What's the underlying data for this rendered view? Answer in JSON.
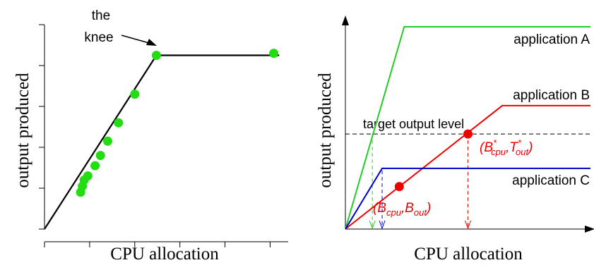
{
  "chart_data": [
    {
      "type": "scatter",
      "xlabel": "CPU allocation",
      "ylabel": "output produced",
      "annotation": [
        "the",
        "knee"
      ],
      "points": [
        {
          "x": 0.2,
          "y": 0.18
        },
        {
          "x": 0.21,
          "y": 0.21
        },
        {
          "x": 0.22,
          "y": 0.24
        },
        {
          "x": 0.24,
          "y": 0.26
        },
        {
          "x": 0.28,
          "y": 0.31
        },
        {
          "x": 0.31,
          "y": 0.36
        },
        {
          "x": 0.35,
          "y": 0.43
        },
        {
          "x": 0.41,
          "y": 0.52
        },
        {
          "x": 0.5,
          "y": 0.66
        },
        {
          "x": 0.62,
          "y": 0.85
        },
        {
          "x": 1.27,
          "y": 0.86
        }
      ],
      "fit_line": [
        [
          0,
          0
        ],
        [
          0.62,
          0.85
        ],
        [
          1.3,
          0.85
        ]
      ],
      "knee": {
        "x": 0.62,
        "y": 0.85
      },
      "x_ticks": [
        0,
        0.25,
        0.5,
        0.75,
        1.0,
        1.25
      ],
      "y_ticks": [
        0,
        0.2,
        0.4,
        0.6,
        0.8,
        1.0
      ],
      "xlim": [
        0,
        1.35
      ],
      "ylim": [
        0,
        1.0
      ],
      "point_color": "#22dd11",
      "line_color": "#000000"
    },
    {
      "type": "line",
      "xlabel": "CPU allocation",
      "ylabel": "output produced",
      "target_label": "target output level",
      "target_y": 0.47,
      "series": [
        {
          "name": "application A",
          "color": "#22cc22",
          "points": [
            [
              0,
              0
            ],
            [
              0.24,
              1.0
            ],
            [
              1.0,
              1.0
            ]
          ]
        },
        {
          "name": "application B",
          "color": "#ee0000",
          "points": [
            [
              0,
              0
            ],
            [
              0.64,
              0.61
            ],
            [
              1.0,
              0.61
            ]
          ]
        },
        {
          "name": "application C",
          "color": "#0000cc",
          "points": [
            [
              0,
              0
            ],
            [
              0.15,
              0.3
            ],
            [
              1.0,
              0.3
            ]
          ]
        }
      ],
      "markers": [
        {
          "label_main": "(B",
          "sub1": "cpu",
          "mid": ",B",
          "sub2": "out",
          "close": ")",
          "x": 0.22,
          "y": 0.21,
          "star": false
        },
        {
          "label_main": "(B",
          "sub1": "cpu",
          "mid": ",T",
          "sub2": "out",
          "close": ")",
          "x": 0.5,
          "y": 0.47,
          "star": true
        }
      ],
      "drops": [
        {
          "x": 0.11,
          "color": "#22cc22"
        },
        {
          "x": 0.15,
          "color": "#0000cc"
        },
        {
          "x": 0.5,
          "color": "#ee0000"
        }
      ],
      "xlim": [
        0,
        1.0
      ],
      "ylim": [
        0,
        1.0
      ]
    }
  ]
}
